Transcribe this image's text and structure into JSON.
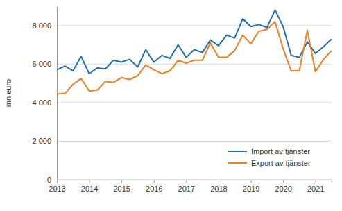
{
  "chart_data": {
    "type": "line",
    "y_label": "mn euro",
    "x": [
      2013,
      2013.25,
      2013.5,
      2013.75,
      2014,
      2014.25,
      2014.5,
      2014.75,
      2015,
      2015.25,
      2015.5,
      2015.75,
      2016,
      2016.25,
      2016.5,
      2016.75,
      2017,
      2017.25,
      2017.5,
      2017.75,
      2018,
      2018.25,
      2018.5,
      2018.75,
      2019,
      2019.25,
      2019.5,
      2019.75,
      2020,
      2020.25,
      2020.5,
      2020.75,
      2021,
      2021.25,
      2021.5
    ],
    "series": [
      {
        "name": "Import av tjänster",
        "color": "#1f6fb5",
        "values": [
          5700,
          5900,
          5650,
          6400,
          5500,
          5800,
          5750,
          6200,
          6100,
          6250,
          5850,
          6750,
          6100,
          6450,
          6300,
          7000,
          6350,
          6750,
          6600,
          7250,
          6950,
          7500,
          7350,
          8350,
          7950,
          8050,
          7900,
          8800,
          7950,
          6450,
          6350,
          7150,
          6550,
          6900,
          7300
        ]
      },
      {
        "name": "Export av tjänster",
        "color": "#f07d1e",
        "values": [
          4450,
          4480,
          4950,
          5250,
          4600,
          4650,
          5100,
          5050,
          5300,
          5200,
          5400,
          5950,
          5700,
          5500,
          5650,
          6200,
          6050,
          6200,
          6200,
          7100,
          6350,
          6350,
          6700,
          7500,
          7050,
          7700,
          7800,
          8200,
          6800,
          5650,
          5650,
          7750,
          5600,
          6250,
          6700
        ]
      }
    ],
    "xlim": [
      2013,
      2021.5
    ],
    "xticks": [
      2013,
      2014,
      2015,
      2016,
      2017,
      2018,
      2019,
      2020,
      2021
    ],
    "ylim": [
      0,
      9000
    ],
    "yticks": [
      0,
      {
        "value": 2000,
        "label": "2 000"
      },
      {
        "value": 4000,
        "label": "4 000"
      },
      {
        "value": 6000,
        "label": "6 000"
      },
      {
        "value": 8000,
        "label": "8 000"
      }
    ],
    "grid": true,
    "legend": "lower right"
  }
}
